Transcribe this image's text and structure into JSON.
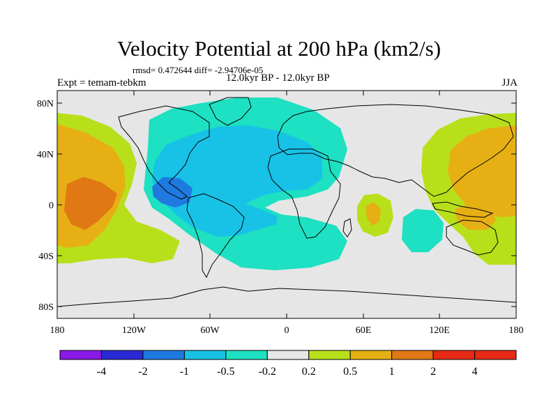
{
  "header": {
    "title": "Velocity Potential at 200 hPa (km2/s)",
    "stats": "rmsd= 0.472644 diff= -2.94706e-05",
    "left_label": "Expt = temam-tebkm",
    "center_label": "12.0kyr BP - 12.0kyr BP",
    "right_label": "JJA"
  },
  "axes": {
    "y_ticks": [
      "80N",
      "40N",
      "0",
      "40S",
      "80S"
    ],
    "x_ticks": [
      "180",
      "120W",
      "60W",
      "0",
      "60E",
      "120E",
      "180"
    ]
  },
  "colorbar": {
    "labels": [
      "-4",
      "-2",
      "-1",
      "-0.5",
      "-0.2",
      "0.2",
      "0.5",
      "1",
      "2",
      "4"
    ],
    "colors": [
      "#8b1ae6",
      "#2a2ad6",
      "#1f7ae0",
      "#18c2e6",
      "#1ee0c2",
      "#e6e6e6",
      "#b8e01a",
      "#e6b014",
      "#e07814",
      "#e62a14"
    ]
  },
  "chart_data": {
    "type": "heatmap",
    "title": "Velocity Potential at 200 hPa (km2/s)",
    "xlabel": "",
    "ylabel": "",
    "xlim": [
      -180,
      180
    ],
    "ylim": [
      -90,
      90
    ],
    "contour_levels": [
      -4,
      -2,
      -1,
      -0.5,
      -0.2,
      0.2,
      0.5,
      1,
      2,
      4
    ],
    "regions": [
      {
        "name": "central-pacific-positive",
        "value_range": [
          0.5,
          2
        ]
      },
      {
        "name": "central-america-negative",
        "value_range": [
          -2,
          -1
        ]
      },
      {
        "name": "atlantic-africa-negative",
        "value_range": [
          -0.5,
          -0.2
        ]
      },
      {
        "name": "western-pacific-positive",
        "value_range": [
          0.5,
          1
        ]
      },
      {
        "name": "indian-ocean-positive",
        "value_range": [
          0.2,
          1
        ]
      },
      {
        "name": "indian-ocean-negative",
        "value_range": [
          -0.5,
          -0.2
        ]
      }
    ]
  }
}
